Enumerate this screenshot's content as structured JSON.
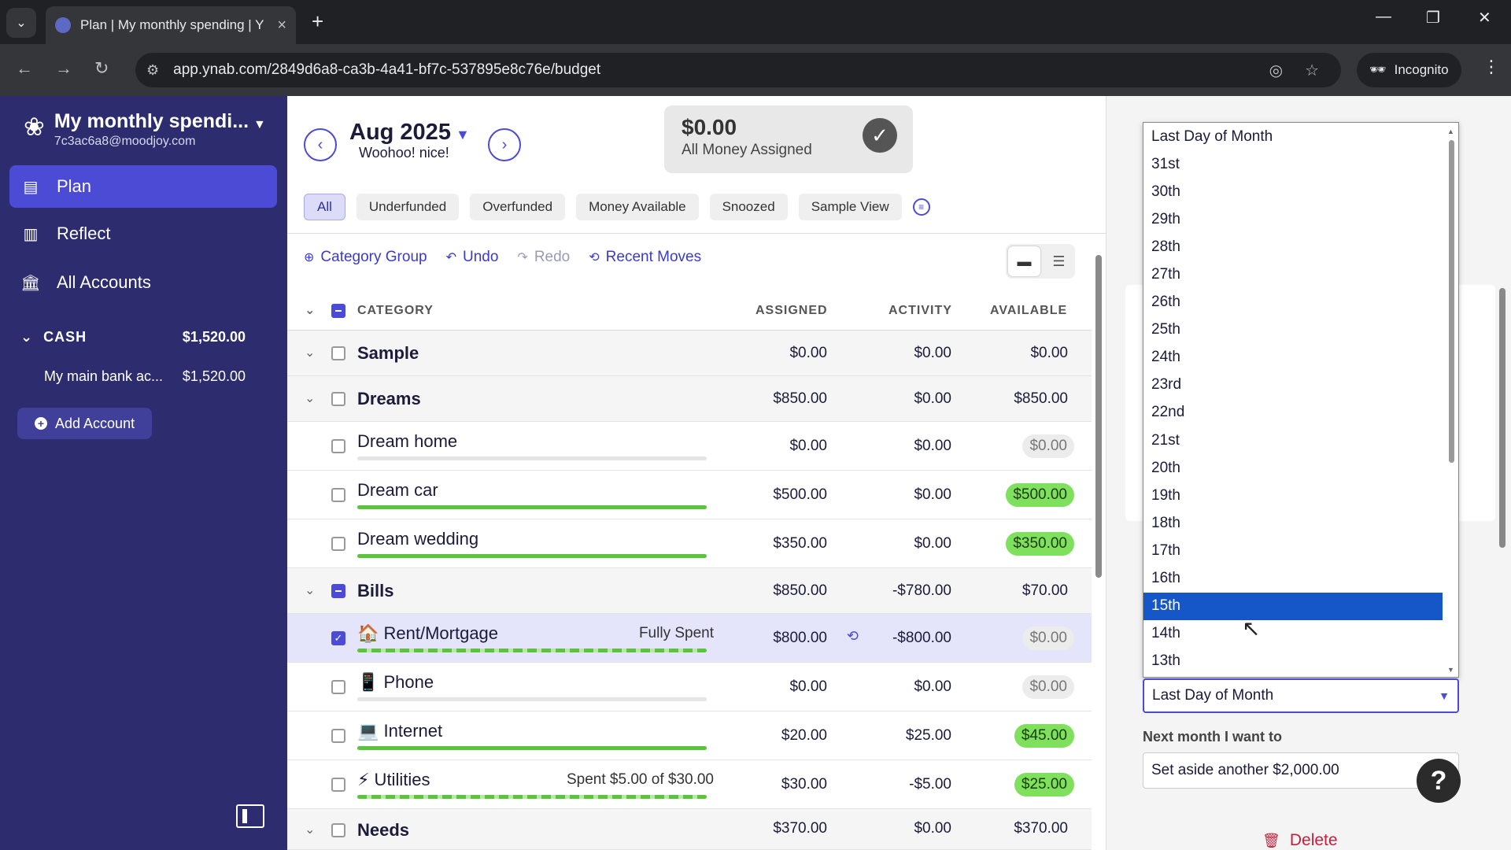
{
  "browser": {
    "tab_title": "Plan | My monthly spending | Y",
    "url": "app.ynab.com/2849d6a8-ca3b-4a41-bf7c-537895e8c76e/budget",
    "incognito_label": "Incognito"
  },
  "sidebar": {
    "budget_name": "My monthly spendi...",
    "email": "7c3ac6a8@moodjoy.com",
    "nav": [
      {
        "label": "Plan",
        "icon": "plan-icon"
      },
      {
        "label": "Reflect",
        "icon": "chart-icon"
      },
      {
        "label": "All Accounts",
        "icon": "bank-icon"
      }
    ],
    "account_group": {
      "name": "CASH",
      "balance": "$1,520.00"
    },
    "accounts": [
      {
        "name": "My main bank ac...",
        "balance": "$1,520.00"
      }
    ],
    "add_account_label": "Add Account"
  },
  "header": {
    "month": "Aug 2025",
    "month_sub": "Woohoo! nice!",
    "rta_amount": "$0.00",
    "rta_label": "All Money Assigned"
  },
  "filters": [
    "All",
    "Underfunded",
    "Overfunded",
    "Money Available",
    "Snoozed",
    "Sample View"
  ],
  "toolbar": {
    "category_group": "Category Group",
    "undo": "Undo",
    "redo": "Redo",
    "recent_moves": "Recent Moves"
  },
  "table": {
    "columns": {
      "category": "CATEGORY",
      "assigned": "ASSIGNED",
      "activity": "ACTIVITY",
      "available": "AVAILABLE"
    },
    "rows": [
      {
        "name": "Sample",
        "assigned": "$0.00",
        "activity": "$0.00",
        "available": "$0.00"
      },
      {
        "name": "Dreams",
        "assigned": "$850.00",
        "activity": "$0.00",
        "available": "$850.00"
      },
      {
        "name": "Dream home",
        "assigned": "$0.00",
        "activity": "$0.00",
        "available": "$0.00",
        "progress": 0
      },
      {
        "name": "Dream car",
        "assigned": "$500.00",
        "activity": "$0.00",
        "available": "$500.00",
        "progress": 1
      },
      {
        "name": "Dream wedding",
        "assigned": "$350.00",
        "activity": "$0.00",
        "available": "$350.00",
        "progress": 1
      },
      {
        "name": "Bills",
        "assigned": "$850.00",
        "activity": "-$780.00",
        "available": "$70.00"
      },
      {
        "name": "🏠 Rent/Mortgage",
        "note": "Fully Spent",
        "assigned": "$800.00",
        "activity": "-$800.00",
        "available": "$0.00",
        "progress": 1
      },
      {
        "name": "📱 Phone",
        "assigned": "$0.00",
        "activity": "$0.00",
        "available": "$0.00",
        "progress": 0
      },
      {
        "name": "💻 Internet",
        "assigned": "$20.00",
        "activity": "$25.00",
        "available": "$45.00",
        "progress": 1
      },
      {
        "name": "⚡ Utilities",
        "note": "Spent $5.00 of $30.00",
        "assigned": "$30.00",
        "activity": "-$5.00",
        "available": "$25.00",
        "progress": 1
      },
      {
        "name": "Needs",
        "assigned": "$370.00",
        "activity": "$0.00",
        "available": "$370.00"
      }
    ]
  },
  "inspector": {
    "dropdown_options": [
      "Last Day of Month",
      "31st",
      "30th",
      "29th",
      "28th",
      "27th",
      "26th",
      "25th",
      "24th",
      "23rd",
      "22nd",
      "21st",
      "20th",
      "19th",
      "18th",
      "17th",
      "16th",
      "15th",
      "14th",
      "13th"
    ],
    "highlighted_option": "15th",
    "selected_value": "Last Day of Month",
    "next_month_label": "Next month I want to",
    "next_month_value": "Set aside another $2,000.00",
    "delete_label": "Delete",
    "help_label": "?"
  },
  "colors": {
    "sidebar_bg": "#2c2c6e",
    "accent": "#4b4bd6",
    "available_green": "#7ee05c",
    "dropdown_highlight": "#1557c9"
  }
}
